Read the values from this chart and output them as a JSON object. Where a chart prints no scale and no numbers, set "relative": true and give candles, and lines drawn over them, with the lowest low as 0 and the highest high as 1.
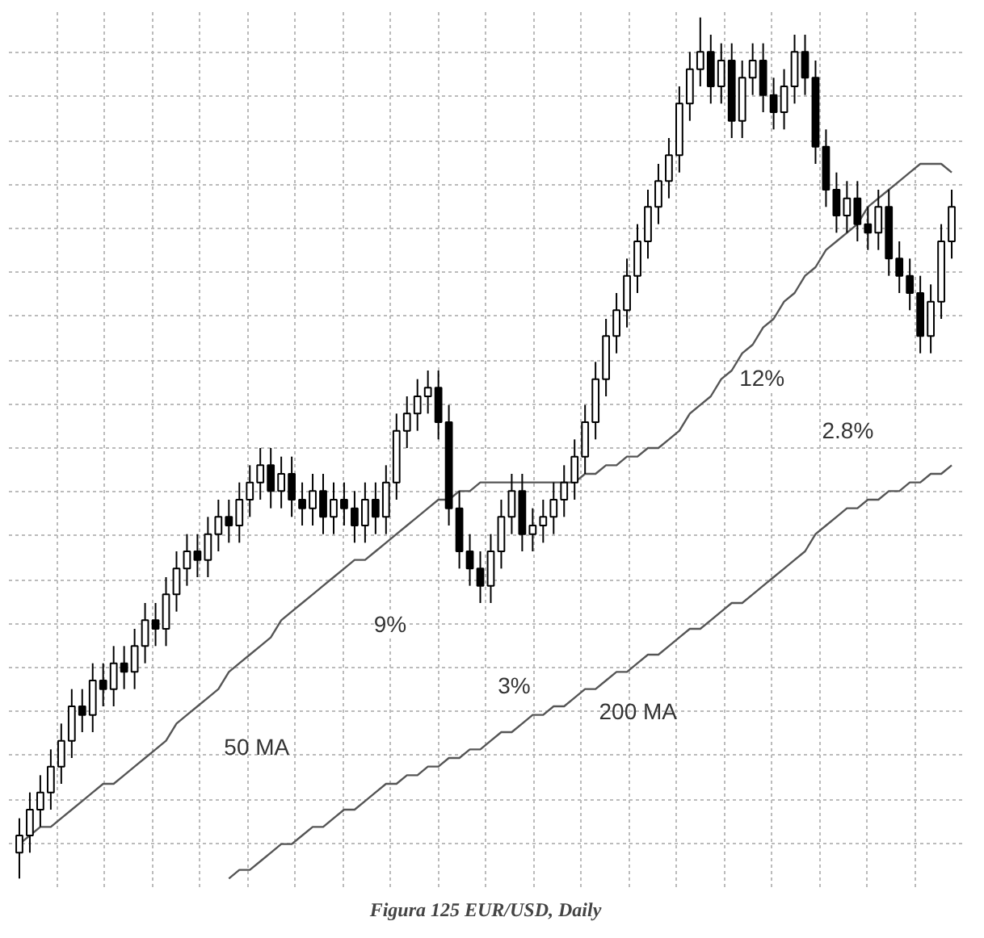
{
  "chart_data": {
    "type": "candlestick",
    "title": "Figura 125 EUR/USD, Daily",
    "relative": true,
    "grid": true,
    "categories": [
      null,
      null,
      null,
      null,
      null,
      null,
      null,
      null,
      null,
      null,
      null,
      null,
      null,
      null,
      null,
      null,
      null,
      null,
      null,
      null,
      null,
      null,
      null,
      null,
      null,
      null,
      null,
      null,
      null,
      null,
      null,
      null,
      null,
      null,
      null,
      null,
      null,
      null,
      null,
      null,
      null,
      null,
      null,
      null,
      null,
      null,
      null,
      null,
      null,
      null,
      null,
      null,
      null,
      null,
      null,
      null,
      null,
      null,
      null,
      null,
      null,
      null,
      null,
      null,
      null,
      null,
      null,
      null,
      null,
      null,
      null,
      null,
      null,
      null,
      null,
      null,
      null,
      null,
      null,
      null,
      null,
      null,
      null,
      null,
      null,
      null,
      null,
      null,
      null,
      null
    ],
    "ohlc": [
      [
        0.03,
        0.07,
        0.0,
        0.05
      ],
      [
        0.05,
        0.1,
        0.03,
        0.08
      ],
      [
        0.08,
        0.12,
        0.06,
        0.1
      ],
      [
        0.1,
        0.15,
        0.08,
        0.13
      ],
      [
        0.13,
        0.18,
        0.11,
        0.16
      ],
      [
        0.16,
        0.22,
        0.14,
        0.2
      ],
      [
        0.2,
        0.22,
        0.17,
        0.19
      ],
      [
        0.19,
        0.25,
        0.17,
        0.23
      ],
      [
        0.23,
        0.25,
        0.2,
        0.22
      ],
      [
        0.22,
        0.27,
        0.2,
        0.25
      ],
      [
        0.25,
        0.27,
        0.22,
        0.24
      ],
      [
        0.24,
        0.29,
        0.22,
        0.27
      ],
      [
        0.27,
        0.32,
        0.25,
        0.3
      ],
      [
        0.3,
        0.32,
        0.27,
        0.29
      ],
      [
        0.29,
        0.35,
        0.27,
        0.33
      ],
      [
        0.33,
        0.38,
        0.31,
        0.36
      ],
      [
        0.36,
        0.4,
        0.34,
        0.38
      ],
      [
        0.38,
        0.4,
        0.35,
        0.37
      ],
      [
        0.37,
        0.42,
        0.35,
        0.4
      ],
      [
        0.4,
        0.44,
        0.38,
        0.42
      ],
      [
        0.42,
        0.44,
        0.39,
        0.41
      ],
      [
        0.41,
        0.46,
        0.39,
        0.44
      ],
      [
        0.44,
        0.48,
        0.42,
        0.46
      ],
      [
        0.46,
        0.5,
        0.44,
        0.48
      ],
      [
        0.48,
        0.5,
        0.43,
        0.45
      ],
      [
        0.45,
        0.49,
        0.43,
        0.47
      ],
      [
        0.47,
        0.49,
        0.42,
        0.44
      ],
      [
        0.44,
        0.46,
        0.41,
        0.43
      ],
      [
        0.43,
        0.47,
        0.41,
        0.45
      ],
      [
        0.45,
        0.47,
        0.4,
        0.42
      ],
      [
        0.42,
        0.46,
        0.4,
        0.44
      ],
      [
        0.44,
        0.46,
        0.41,
        0.43
      ],
      [
        0.43,
        0.45,
        0.39,
        0.41
      ],
      [
        0.41,
        0.46,
        0.39,
        0.44
      ],
      [
        0.44,
        0.46,
        0.4,
        0.42
      ],
      [
        0.42,
        0.48,
        0.4,
        0.46
      ],
      [
        0.46,
        0.54,
        0.44,
        0.52
      ],
      [
        0.52,
        0.56,
        0.5,
        0.54
      ],
      [
        0.54,
        0.58,
        0.52,
        0.56
      ],
      [
        0.56,
        0.59,
        0.54,
        0.57
      ],
      [
        0.57,
        0.59,
        0.51,
        0.53
      ],
      [
        0.53,
        0.55,
        0.41,
        0.43
      ],
      [
        0.43,
        0.45,
        0.36,
        0.38
      ],
      [
        0.38,
        0.4,
        0.34,
        0.36
      ],
      [
        0.36,
        0.38,
        0.32,
        0.34
      ],
      [
        0.34,
        0.4,
        0.32,
        0.38
      ],
      [
        0.38,
        0.44,
        0.36,
        0.42
      ],
      [
        0.42,
        0.47,
        0.4,
        0.45
      ],
      [
        0.45,
        0.47,
        0.38,
        0.4
      ],
      [
        0.4,
        0.43,
        0.38,
        0.41
      ],
      [
        0.41,
        0.44,
        0.39,
        0.42
      ],
      [
        0.42,
        0.46,
        0.4,
        0.44
      ],
      [
        0.44,
        0.48,
        0.42,
        0.46
      ],
      [
        0.46,
        0.51,
        0.44,
        0.49
      ],
      [
        0.49,
        0.55,
        0.47,
        0.53
      ],
      [
        0.53,
        0.6,
        0.51,
        0.58
      ],
      [
        0.58,
        0.65,
        0.56,
        0.63
      ],
      [
        0.63,
        0.68,
        0.61,
        0.66
      ],
      [
        0.66,
        0.72,
        0.64,
        0.7
      ],
      [
        0.7,
        0.76,
        0.68,
        0.74
      ],
      [
        0.74,
        0.8,
        0.72,
        0.78
      ],
      [
        0.78,
        0.83,
        0.76,
        0.81
      ],
      [
        0.81,
        0.86,
        0.79,
        0.84
      ],
      [
        0.84,
        0.92,
        0.82,
        0.9
      ],
      [
        0.9,
        0.96,
        0.88,
        0.94
      ],
      [
        0.94,
        1.0,
        0.92,
        0.96
      ],
      [
        0.96,
        0.98,
        0.9,
        0.92
      ],
      [
        0.92,
        0.97,
        0.9,
        0.95
      ],
      [
        0.95,
        0.97,
        0.86,
        0.88
      ],
      [
        0.88,
        0.95,
        0.86,
        0.93
      ],
      [
        0.93,
        0.97,
        0.91,
        0.95
      ],
      [
        0.95,
        0.97,
        0.89,
        0.91
      ],
      [
        0.91,
        0.93,
        0.87,
        0.89
      ],
      [
        0.89,
        0.94,
        0.87,
        0.92
      ],
      [
        0.92,
        0.98,
        0.9,
        0.96
      ],
      [
        0.96,
        0.98,
        0.91,
        0.93
      ],
      [
        0.93,
        0.95,
        0.83,
        0.85
      ],
      [
        0.85,
        0.87,
        0.78,
        0.8
      ],
      [
        0.8,
        0.82,
        0.75,
        0.77
      ],
      [
        0.77,
        0.81,
        0.75,
        0.79
      ],
      [
        0.79,
        0.81,
        0.74,
        0.76
      ],
      [
        0.76,
        0.78,
        0.73,
        0.75
      ],
      [
        0.75,
        0.8,
        0.73,
        0.78
      ],
      [
        0.78,
        0.8,
        0.7,
        0.72
      ],
      [
        0.72,
        0.74,
        0.68,
        0.7
      ],
      [
        0.7,
        0.72,
        0.66,
        0.68
      ],
      [
        0.68,
        0.7,
        0.61,
        0.63
      ],
      [
        0.63,
        0.69,
        0.61,
        0.67
      ],
      [
        0.67,
        0.76,
        0.65,
        0.74
      ],
      [
        0.74,
        0.8,
        0.72,
        0.78
      ]
    ],
    "series": [
      {
        "type": "line",
        "name": "50 MA",
        "color": "#555555",
        "values": [
          0.04,
          0.05,
          0.06,
          0.06,
          0.07,
          0.08,
          0.09,
          0.1,
          0.11,
          0.11,
          0.12,
          0.13,
          0.14,
          0.15,
          0.16,
          0.18,
          0.19,
          0.2,
          0.21,
          0.22,
          0.24,
          0.25,
          0.26,
          0.27,
          0.28,
          0.3,
          0.31,
          0.32,
          0.33,
          0.34,
          0.35,
          0.36,
          0.37,
          0.37,
          0.38,
          0.39,
          0.4,
          0.41,
          0.42,
          0.43,
          0.44,
          0.44,
          0.45,
          0.45,
          0.46,
          0.46,
          0.46,
          0.46,
          0.46,
          0.46,
          0.46,
          0.46,
          0.46,
          0.46,
          0.47,
          0.47,
          0.48,
          0.48,
          0.49,
          0.49,
          0.5,
          0.5,
          0.51,
          0.52,
          0.54,
          0.55,
          0.56,
          0.58,
          0.59,
          0.61,
          0.62,
          0.64,
          0.65,
          0.67,
          0.68,
          0.7,
          0.71,
          0.73,
          0.74,
          0.75,
          0.76,
          0.78,
          0.79,
          0.8,
          0.81,
          0.82,
          0.83,
          0.83,
          0.83,
          0.82
        ]
      },
      {
        "type": "line",
        "name": "200 MA",
        "color": "#555555",
        "values": [
          null,
          null,
          null,
          null,
          null,
          null,
          null,
          null,
          null,
          null,
          null,
          null,
          null,
          null,
          null,
          null,
          null,
          null,
          null,
          null,
          0.0,
          0.01,
          0.01,
          0.02,
          0.03,
          0.04,
          0.04,
          0.05,
          0.06,
          0.06,
          0.07,
          0.08,
          0.08,
          0.09,
          0.1,
          0.11,
          0.11,
          0.12,
          0.12,
          0.13,
          0.13,
          0.14,
          0.14,
          0.15,
          0.15,
          0.16,
          0.17,
          0.17,
          0.18,
          0.19,
          0.19,
          0.2,
          0.2,
          0.21,
          0.22,
          0.22,
          0.23,
          0.24,
          0.24,
          0.25,
          0.26,
          0.26,
          0.27,
          0.28,
          0.29,
          0.29,
          0.3,
          0.31,
          0.32,
          0.32,
          0.33,
          0.34,
          0.35,
          0.36,
          0.37,
          0.38,
          0.4,
          0.41,
          0.42,
          0.43,
          0.43,
          0.44,
          0.44,
          0.45,
          0.45,
          0.46,
          0.46,
          0.47,
          0.47,
          0.48
        ]
      }
    ],
    "annotations": [
      "9%",
      "3%",
      "12%",
      "2.8%"
    ]
  }
}
